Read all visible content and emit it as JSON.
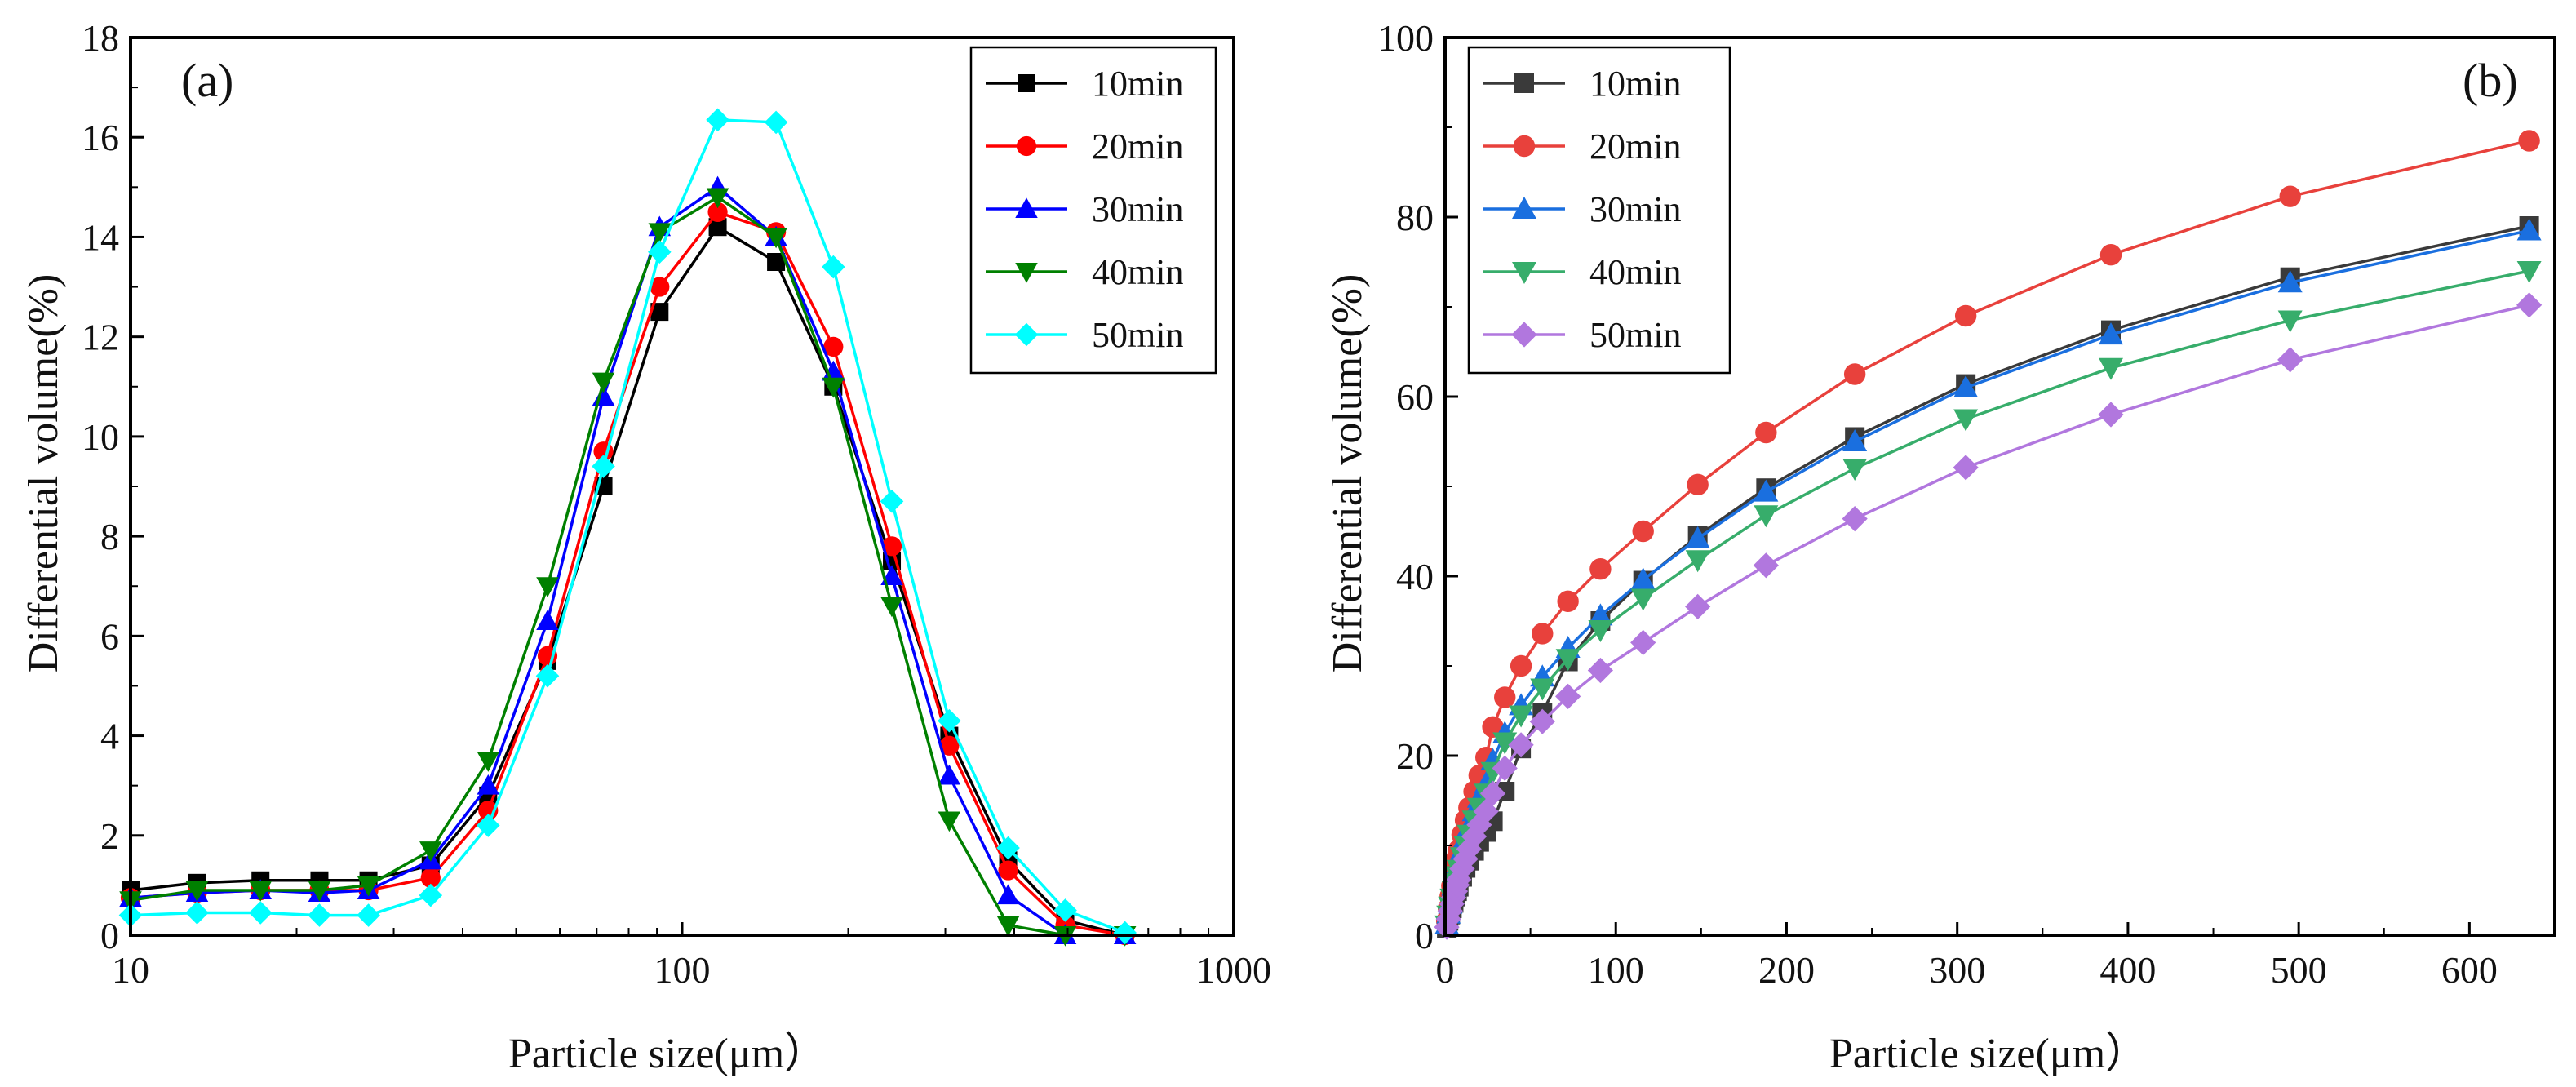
{
  "chart_data": [
    {
      "type": "line",
      "panel": "(a)",
      "xlabel": "Particle size(μm）",
      "ylabel": "Differential volume(%)",
      "xscale": "log",
      "xlim": [
        10,
        1000
      ],
      "ylim": [
        0,
        18
      ],
      "xticks": [
        10,
        100,
        1000
      ],
      "xtick_labels": [
        "10",
        "100",
        "1000"
      ],
      "yticks": [
        0,
        2,
        4,
        6,
        8,
        10,
        12,
        14,
        16,
        18
      ],
      "ytick_labels": [
        "0",
        "2",
        "4",
        "6",
        "8",
        "10",
        "12",
        "14",
        "16",
        "18"
      ],
      "legend_position": "top-right",
      "x": [
        10.0,
        13.2,
        17.2,
        22.0,
        27.0,
        35.0,
        44.5,
        57.0,
        72.0,
        91.0,
        116.0,
        148.0,
        188.0,
        240.0,
        305.0,
        390.0,
        495.0,
        635.0
      ],
      "series": [
        {
          "name": "10min",
          "color": "#000000",
          "marker": "square",
          "values": [
            0.9,
            1.05,
            1.1,
            1.1,
            1.1,
            1.4,
            2.8,
            5.5,
            9.0,
            12.5,
            14.2,
            13.5,
            11.0,
            7.5,
            4.0,
            1.5,
            0.3,
            0.0
          ]
        },
        {
          "name": "20min",
          "color": "#ff0000",
          "marker": "circle",
          "values": [
            0.75,
            0.85,
            0.9,
            0.9,
            0.9,
            1.15,
            2.5,
            5.6,
            9.7,
            13.0,
            14.5,
            14.1,
            11.8,
            7.8,
            3.8,
            1.3,
            0.2,
            0.0
          ]
        },
        {
          "name": "30min",
          "color": "#0000ff",
          "marker": "triangle-up",
          "values": [
            0.75,
            0.85,
            0.9,
            0.85,
            0.9,
            1.5,
            3.0,
            6.3,
            10.8,
            14.2,
            15.0,
            14.0,
            11.3,
            7.2,
            3.2,
            0.8,
            0.0,
            0.0
          ]
        },
        {
          "name": "40min",
          "color": "#008000",
          "marker": "triangle-down",
          "values": [
            0.7,
            0.9,
            0.9,
            0.9,
            1.0,
            1.7,
            3.5,
            7.0,
            11.1,
            14.1,
            14.8,
            14.0,
            11.0,
            6.6,
            2.3,
            0.2,
            0.0,
            0.0
          ]
        },
        {
          "name": "50min",
          "color": "#00ffff",
          "marker": "diamond",
          "values": [
            0.4,
            0.45,
            0.45,
            0.4,
            0.4,
            0.8,
            2.2,
            5.2,
            9.4,
            13.7,
            16.35,
            16.3,
            13.4,
            8.7,
            4.3,
            1.75,
            0.5,
            0.05
          ]
        }
      ]
    },
    {
      "type": "line",
      "panel": "(b)",
      "xlabel": "Particle size(μm）",
      "ylabel": "Differential volume(%)",
      "xlim": [
        0,
        650
      ],
      "ylim": [
        0,
        100
      ],
      "xticks": [
        0,
        100,
        200,
        300,
        400,
        500,
        600
      ],
      "xtick_labels": [
        "0",
        "100",
        "200",
        "300",
        "400",
        "500",
        "600"
      ],
      "yticks": [
        0,
        20,
        40,
        60,
        80,
        100
      ],
      "ytick_labels": [
        "0",
        "20",
        "40",
        "60",
        "80",
        "100"
      ],
      "legend_position": "top-left",
      "x": [
        1,
        2,
        3,
        4,
        5,
        6,
        7,
        8,
        10,
        12,
        14,
        17,
        20,
        24,
        28,
        35,
        44.5,
        57,
        72,
        91,
        116,
        148,
        188,
        240,
        305,
        390,
        495,
        635
      ],
      "series": [
        {
          "name": "10min",
          "color": "#3a3a3a",
          "marker": "square",
          "values": [
            0.8,
            1.6,
            2.3,
            3.0,
            3.6,
            4.3,
            4.9,
            5.4,
            6.5,
            7.5,
            8.3,
            9.4,
            10.4,
            11.5,
            12.7,
            16.0,
            20.8,
            24.8,
            30.5,
            35.0,
            39.5,
            44.5,
            49.8,
            55.5,
            61.4,
            67.4,
            73.3,
            79.0
          ]
        },
        {
          "name": "20min",
          "color": "#e8413c",
          "marker": "circle",
          "values": [
            1.6,
            3.0,
            4.3,
            5.5,
            6.6,
            7.6,
            8.6,
            9.5,
            11.2,
            12.8,
            14.2,
            16.0,
            17.8,
            19.8,
            23.2,
            26.5,
            30.0,
            33.6,
            37.2,
            40.8,
            45.0,
            50.2,
            56.0,
            62.5,
            69.0,
            75.8,
            82.3,
            88.5
          ]
        },
        {
          "name": "30min",
          "color": "#1a6fdf",
          "marker": "triangle-up",
          "values": [
            1.2,
            2.4,
            3.5,
            4.5,
            5.5,
            6.4,
            7.2,
            8.0,
            9.5,
            10.9,
            12.1,
            13.8,
            15.3,
            16.9,
            19.5,
            22.5,
            25.6,
            28.8,
            32.0,
            35.6,
            39.6,
            44.2,
            49.4,
            55.0,
            61.0,
            66.9,
            72.7,
            78.5
          ]
        },
        {
          "name": "40min",
          "color": "#37ad6b",
          "marker": "triangle-down",
          "values": [
            1.1,
            2.2,
            3.2,
            4.1,
            5.0,
            5.8,
            6.6,
            7.3,
            8.7,
            10.0,
            11.2,
            12.8,
            14.2,
            15.8,
            18.2,
            21.5,
            24.5,
            27.5,
            30.8,
            34.0,
            37.5,
            41.8,
            46.8,
            52.0,
            57.5,
            63.2,
            68.5,
            74.0
          ]
        },
        {
          "name": "50min",
          "color": "#b177de",
          "marker": "diamond",
          "values": [
            0.9,
            1.8,
            2.7,
            3.5,
            4.2,
            4.9,
            5.6,
            6.2,
            7.4,
            8.5,
            9.6,
            11.0,
            12.3,
            13.8,
            15.8,
            18.6,
            21.2,
            23.8,
            26.6,
            29.5,
            32.6,
            36.6,
            41.2,
            46.4,
            52.1,
            58.0,
            64.1,
            70.2
          ]
        }
      ]
    }
  ]
}
